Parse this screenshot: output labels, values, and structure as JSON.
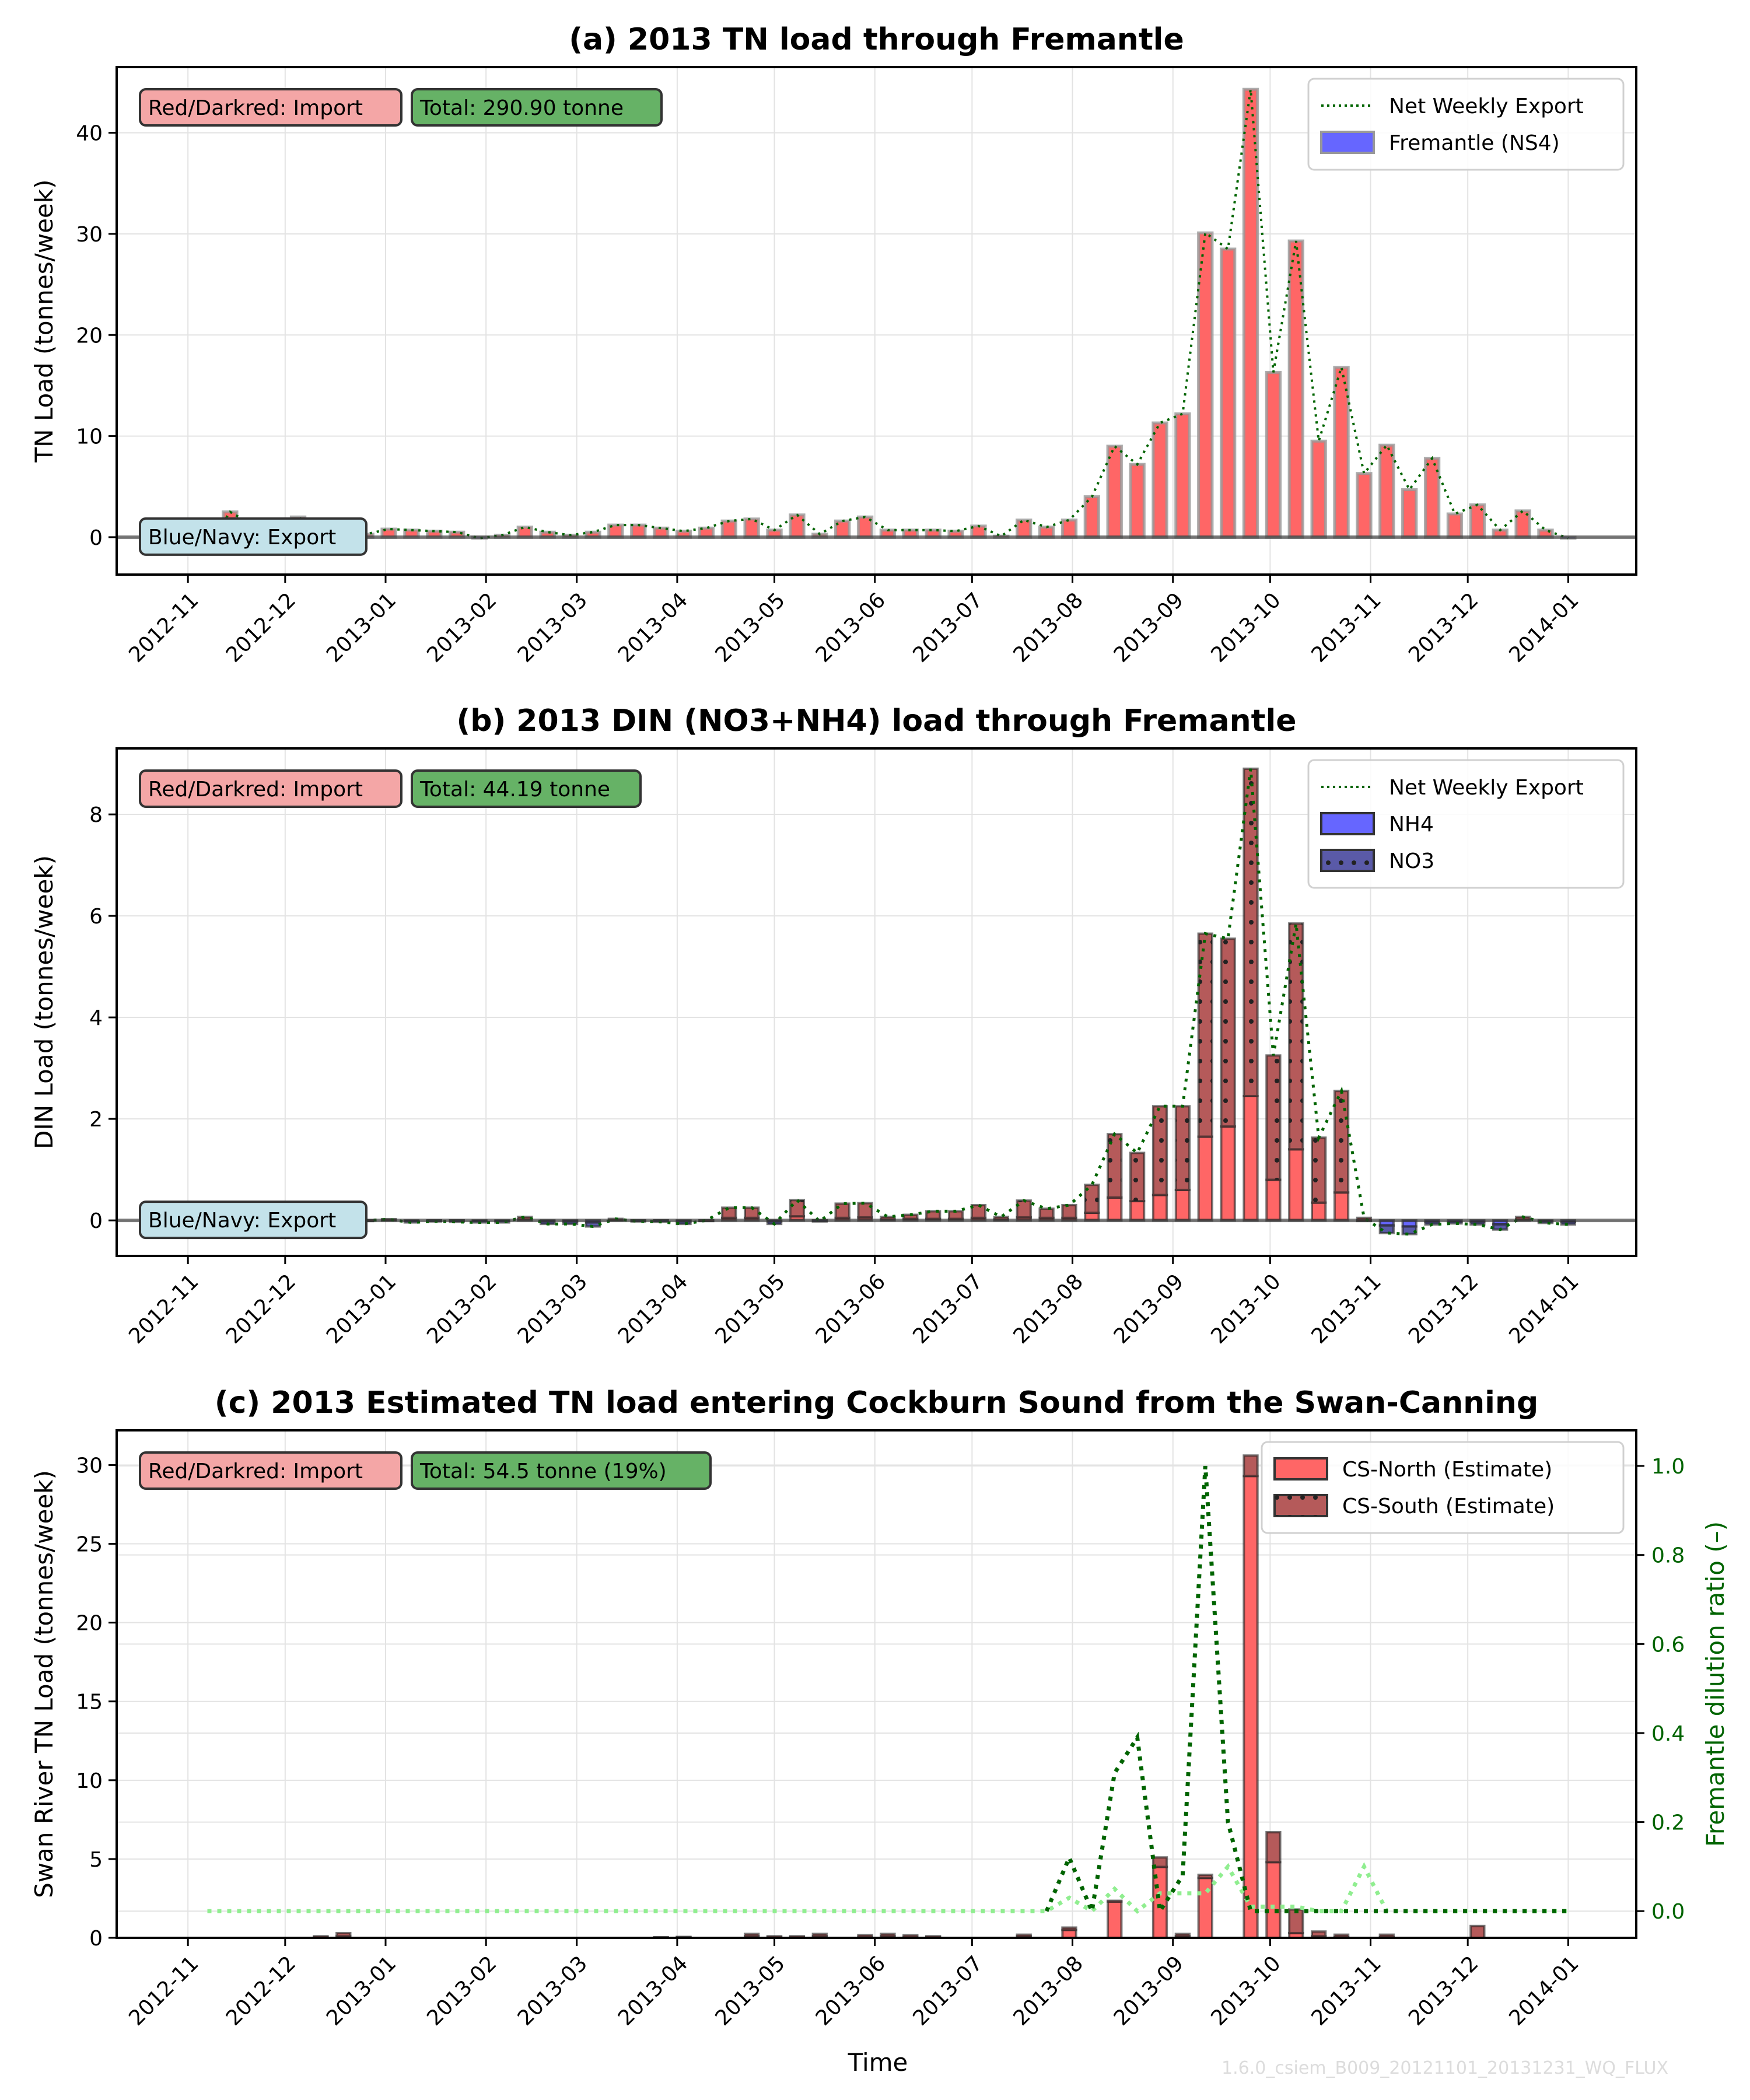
{
  "figure": {
    "watermark": "1.6.0_csiem_B009_20121101_20131231_WQ_FLUX",
    "x_axis_label": "Time"
  },
  "colors": {
    "import_bar": "#ff6666",
    "import_dark": "#b55a5a",
    "export_bar": "#6666ff",
    "export_dark": "#5a5aa8",
    "net_line": "#006400",
    "dilution_light": "#90ee90",
    "import_box": "#f4a6a6",
    "export_box": "#c3e2ea",
    "total_box": "#66b266"
  },
  "chart_data": [
    {
      "id": "a",
      "type": "bar",
      "title": "(a) 2013 TN load through Fremantle",
      "xlabel": "",
      "ylabel": "TN Load (tonnes/week)",
      "ylim": [
        -3.7,
        46.5
      ],
      "yticks": [
        0,
        10,
        20,
        30,
        40
      ],
      "xticks": [
        "2012-11",
        "2012-12",
        "2013-01",
        "2013-02",
        "2013-03",
        "2013-04",
        "2013-05",
        "2013-06",
        "2013-07",
        "2013-08",
        "2013-09",
        "2013-10",
        "2013-11",
        "2013-12",
        "2014-01"
      ],
      "annotations": {
        "import": "Red/Darkred: Import",
        "export": "Blue/Navy: Export",
        "total": "Total: 290.90 tonne"
      },
      "legend": {
        "position": "top-right",
        "entries": [
          "Net Weekly Export",
          "Fremantle (NS4)"
        ]
      },
      "grid": true,
      "x_start": "2012-11-07",
      "series": [
        {
          "name": "Fremantle (NS4)",
          "values": [
            -1.0,
            2.5,
            1.2,
            0.8,
            2.0,
            0.8,
            1.5,
            0.3,
            0.8,
            0.7,
            0.6,
            0.5,
            -0.1,
            0.2,
            1.0,
            0.5,
            0.2,
            0.5,
            1.2,
            1.2,
            0.9,
            0.6,
            0.9,
            1.6,
            1.8,
            0.7,
            2.2,
            0.3,
            1.6,
            2.0,
            0.7,
            0.7,
            0.7,
            0.6,
            1.1,
            0.1,
            1.7,
            1.0,
            1.7,
            4.0,
            9.0,
            7.2,
            11.3,
            12.2,
            30.1,
            28.5,
            44.3,
            16.3,
            29.3,
            9.5,
            16.8,
            6.3,
            9.1,
            4.7,
            7.8,
            2.3,
            3.2,
            0.7,
            2.6,
            0.7,
            -0.1
          ]
        },
        {
          "name": "Net Weekly Export",
          "values": [
            -1.0,
            2.5,
            1.2,
            0.8,
            2.0,
            0.8,
            1.5,
            0.3,
            0.8,
            0.7,
            0.6,
            0.5,
            -0.1,
            0.2,
            1.0,
            0.5,
            0.2,
            0.5,
            1.2,
            1.2,
            0.9,
            0.6,
            0.9,
            1.6,
            1.8,
            0.7,
            2.2,
            0.3,
            1.6,
            2.0,
            0.7,
            0.7,
            0.7,
            0.6,
            1.1,
            0.1,
            1.7,
            1.0,
            1.7,
            4.0,
            9.0,
            7.2,
            11.3,
            12.2,
            30.1,
            28.5,
            44.3,
            16.3,
            29.3,
            9.5,
            16.8,
            6.3,
            9.1,
            4.7,
            7.8,
            2.3,
            3.2,
            0.7,
            2.6,
            0.7,
            -0.1
          ]
        }
      ]
    },
    {
      "id": "b",
      "type": "bar",
      "title": "(b) 2013 DIN (NO3+NH4) load through Fremantle",
      "xlabel": "",
      "ylabel": "DIN Load (tonnes/week)",
      "ylim": [
        -0.7,
        9.3
      ],
      "yticks": [
        0,
        2,
        4,
        6,
        8
      ],
      "xticks": [
        "2012-11",
        "2012-12",
        "2013-01",
        "2013-02",
        "2013-03",
        "2013-04",
        "2013-05",
        "2013-06",
        "2013-07",
        "2013-08",
        "2013-09",
        "2013-10",
        "2013-11",
        "2013-12",
        "2014-01"
      ],
      "annotations": {
        "import": "Red/Darkred: Import",
        "export": "Blue/Navy: Export",
        "total": "Total: 44.19 tonne"
      },
      "legend": {
        "position": "top-right",
        "entries": [
          "Net Weekly Export",
          "NH4",
          "NO3"
        ]
      },
      "grid": true,
      "x_start": "2012-11-07",
      "series": [
        {
          "name": "NH4",
          "values": [
            0,
            0,
            0,
            0,
            0,
            0,
            0,
            0,
            0.02,
            -0.01,
            0.0,
            0.0,
            -0.01,
            -0.01,
            0.02,
            -0.02,
            -0.02,
            -0.04,
            0.01,
            0.0,
            0.0,
            -0.02,
            0.0,
            0.05,
            0.05,
            -0.02,
            0.08,
            0.0,
            0.05,
            0.06,
            0.02,
            0.03,
            0.03,
            0.03,
            0.05,
            0.02,
            0.06,
            0.05,
            0.05,
            0.15,
            0.45,
            0.38,
            0.5,
            0.6,
            1.65,
            1.85,
            2.45,
            0.8,
            1.4,
            0.35,
            0.55,
            0.0,
            -0.1,
            -0.12,
            -0.03,
            -0.03,
            -0.03,
            -0.08,
            0.02,
            -0.02,
            -0.03
          ]
        },
        {
          "name": "NO3",
          "values": [
            0,
            0,
            0,
            0,
            0,
            0,
            0,
            0,
            0.0,
            -0.03,
            -0.02,
            -0.03,
            -0.03,
            -0.03,
            0.05,
            -0.05,
            -0.05,
            -0.08,
            0.02,
            -0.02,
            -0.03,
            -0.05,
            0.0,
            0.2,
            0.2,
            -0.05,
            0.32,
            -0.02,
            0.28,
            0.28,
            0.05,
            0.08,
            0.15,
            0.15,
            0.25,
            0.05,
            0.33,
            0.18,
            0.25,
            0.55,
            1.25,
            0.95,
            1.75,
            1.65,
            4.0,
            3.7,
            6.45,
            2.45,
            4.45,
            1.28,
            2.0,
            0.05,
            -0.15,
            -0.15,
            -0.05,
            -0.03,
            -0.05,
            -0.1,
            0.05,
            -0.03,
            -0.05
          ]
        },
        {
          "name": "Net Weekly Export",
          "values": [
            0,
            0,
            0,
            0,
            0,
            0,
            0,
            0,
            0.02,
            -0.04,
            -0.02,
            -0.03,
            -0.04,
            -0.04,
            0.07,
            -0.07,
            -0.07,
            -0.12,
            0.03,
            -0.02,
            -0.03,
            -0.07,
            0.0,
            0.25,
            0.25,
            -0.07,
            0.4,
            -0.02,
            0.33,
            0.34,
            0.07,
            0.11,
            0.18,
            0.18,
            0.3,
            0.07,
            0.39,
            0.23,
            0.3,
            0.7,
            1.7,
            1.33,
            2.25,
            2.25,
            5.65,
            5.55,
            8.9,
            3.25,
            5.85,
            1.63,
            2.55,
            0.05,
            -0.25,
            -0.27,
            -0.08,
            -0.06,
            -0.08,
            -0.18,
            0.07,
            -0.05,
            -0.08
          ]
        }
      ]
    },
    {
      "id": "c",
      "type": "bar",
      "title": "(c) 2013 Estimated TN load entering Cockburn Sound from the Swan-Canning",
      "xlabel": "Time",
      "ylabel": "Swan River TN Load (tonnes/week)",
      "y2label": "Fremantle dilution ratio (–)",
      "ylim": [
        0,
        32.2
      ],
      "yticks": [
        0,
        5,
        10,
        15,
        20,
        25,
        30
      ],
      "y2lim": [
        -0.06,
        1.08
      ],
      "y2ticks": [
        "0.0",
        "0.2",
        "0.4",
        "0.6",
        "0.8",
        "1.0"
      ],
      "xticks": [
        "2012-11",
        "2012-12",
        "2013-01",
        "2013-02",
        "2013-03",
        "2013-04",
        "2013-05",
        "2013-06",
        "2013-07",
        "2013-08",
        "2013-09",
        "2013-10",
        "2013-11",
        "2013-12",
        "2014-01"
      ],
      "annotations": {
        "import": "Red/Darkred: Import",
        "total": "Total: 54.5 tonne (19%)"
      },
      "legend": {
        "position": "top-right",
        "entries": [
          "CS-North (Estimate)",
          "CS-South (Estimate)"
        ]
      },
      "grid": true,
      "x_start": "2012-11-07",
      "series": [
        {
          "name": "CS-North (Estimate)",
          "values": [
            0,
            0,
            0,
            0,
            0,
            0.05,
            0.1,
            0,
            0,
            0,
            0,
            0,
            0,
            0,
            0,
            0,
            0,
            0,
            0,
            0,
            0.02,
            0.03,
            0,
            0,
            0.1,
            0.05,
            0.05,
            0.1,
            0,
            0.08,
            0.1,
            0.07,
            0.05,
            0,
            0,
            0,
            0.1,
            0,
            0.5,
            0,
            2.3,
            0,
            4.5,
            0.1,
            3.8,
            0,
            29.3,
            4.8,
            0.3,
            0.1,
            0.05,
            0,
            0.05,
            0,
            0,
            0,
            0,
            0,
            0,
            0,
            0
          ]
        },
        {
          "name": "CS-South (Estimate)",
          "values": [
            0,
            0,
            0,
            0,
            0,
            0.05,
            0.2,
            0,
            0,
            0,
            0,
            0,
            0,
            0,
            0,
            0,
            0,
            0,
            0,
            0,
            0.02,
            0.03,
            0,
            0,
            0.15,
            0.05,
            0.05,
            0.15,
            0,
            0.1,
            0.15,
            0.1,
            0.05,
            0,
            0,
            0,
            0.1,
            0,
            0.15,
            0,
            0.05,
            0,
            0.6,
            0.15,
            0.2,
            0,
            1.3,
            1.9,
            1.5,
            0.3,
            0.15,
            0,
            0.15,
            0,
            0,
            0,
            0.75,
            0,
            0,
            0,
            0
          ]
        },
        {
          "name": "Dilution ratio (dark)",
          "axis": "right",
          "values": [
            null,
            null,
            null,
            null,
            null,
            null,
            null,
            null,
            null,
            null,
            null,
            null,
            null,
            null,
            null,
            null,
            null,
            null,
            null,
            null,
            null,
            null,
            null,
            null,
            null,
            null,
            null,
            null,
            null,
            null,
            null,
            null,
            null,
            null,
            null,
            null,
            null,
            0,
            0.12,
            0,
            0.31,
            0.39,
            0,
            0.08,
            1.0,
            0.2,
            0.0,
            0,
            0,
            0,
            0,
            0,
            0,
            0,
            0,
            0,
            0,
            0,
            0,
            0,
            0
          ]
        },
        {
          "name": "Dilution ratio (light)",
          "axis": "right",
          "values": [
            0,
            0,
            0,
            0,
            0,
            0,
            0,
            0,
            0,
            0,
            0,
            0,
            0,
            0,
            0,
            0,
            0,
            0,
            0,
            0,
            0,
            0,
            0,
            0,
            0,
            0,
            0,
            0,
            0,
            0,
            0,
            0,
            0,
            0,
            0,
            0,
            0,
            0,
            0.03,
            0.0,
            0.05,
            0.0,
            0.04,
            0.04,
            0.04,
            0.1,
            0.01,
            0.01,
            0.01,
            0,
            0,
            0.1,
            0,
            0,
            0,
            0,
            0,
            0,
            0,
            0,
            0
          ]
        }
      ]
    }
  ]
}
